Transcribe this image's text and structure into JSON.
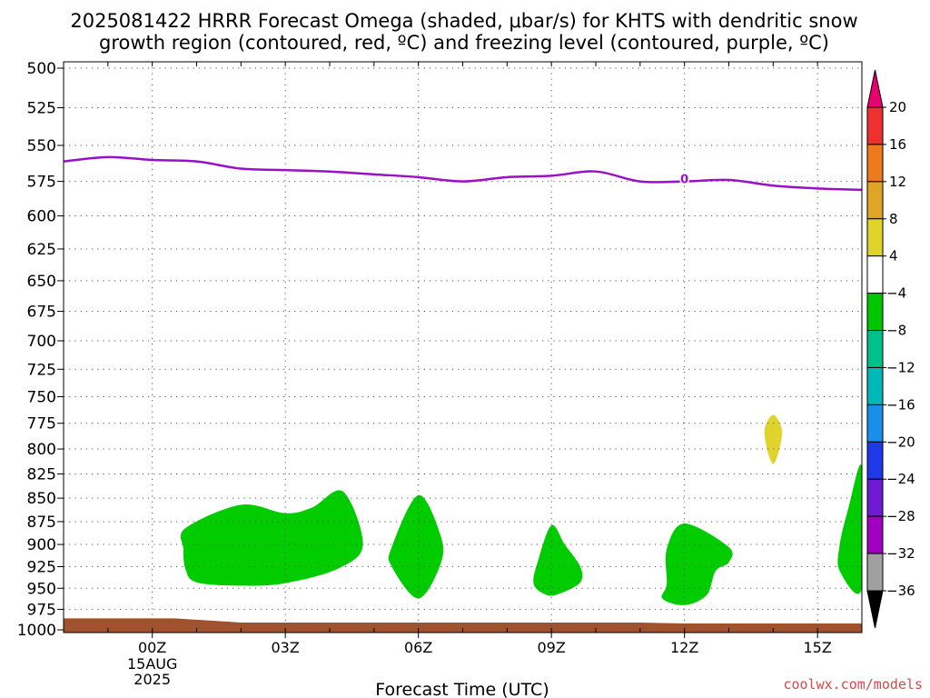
{
  "title": {
    "line1": "2025081422 HRRR Forecast Omega (shaded, μbar/s) for KHTS with dendritic snow",
    "line2": "growth region (contoured, red, ºC) and freezing level (contoured, purple, ºC)"
  },
  "credit": "coolwx.com/models",
  "chart_data": {
    "type": "heatmap",
    "xlabel": "Forecast Time (UTC)",
    "x_ticks": [
      {
        "hour": 0,
        "label": "00Z",
        "sub": [
          "15AUG",
          "2025"
        ]
      },
      {
        "hour": 3,
        "label": "03Z"
      },
      {
        "hour": 6,
        "label": "06Z"
      },
      {
        "hour": 9,
        "label": "09Z"
      },
      {
        "hour": 12,
        "label": "12Z"
      },
      {
        "hour": 15,
        "label": "15Z"
      }
    ],
    "xlim": [
      -2,
      16
    ],
    "y_ticks": [
      500,
      525,
      550,
      575,
      600,
      625,
      650,
      675,
      700,
      725,
      750,
      775,
      800,
      825,
      850,
      875,
      900,
      925,
      950,
      975,
      1000
    ],
    "ylim": [
      500,
      1000
    ],
    "y_scale": "log-pressure (inverted)",
    "grid": true,
    "freezing_level": {
      "color": "#9a10c8",
      "label": "0",
      "label_at": {
        "hour": 12,
        "pressure": 573
      },
      "points": [
        [
          -2,
          561
        ],
        [
          -1,
          558
        ],
        [
          0,
          560
        ],
        [
          1,
          561
        ],
        [
          2,
          566
        ],
        [
          3,
          567
        ],
        [
          4,
          568
        ],
        [
          5,
          570
        ],
        [
          6,
          572
        ],
        [
          7,
          575
        ],
        [
          8,
          572
        ],
        [
          9,
          571
        ],
        [
          10,
          568
        ],
        [
          11,
          575
        ],
        [
          12,
          575
        ],
        [
          13,
          574
        ],
        [
          14,
          578
        ],
        [
          15,
          580
        ],
        [
          16,
          581
        ]
      ]
    },
    "omega_regions": [
      {
        "level": "-8 to -4",
        "color": "#00cc00",
        "points": [
          [
            0.75,
            882
          ],
          [
            2,
            857
          ],
          [
            3,
            866
          ],
          [
            3.6,
            860
          ],
          [
            4.3,
            843
          ],
          [
            4.75,
            900
          ],
          [
            4.2,
            927
          ],
          [
            3,
            944
          ],
          [
            2,
            947
          ],
          [
            1,
            943
          ],
          [
            0.75,
            928
          ],
          [
            0.7,
            905
          ]
        ]
      },
      {
        "level": "-8 to -4",
        "color": "#00cc00",
        "points": [
          [
            6,
            847
          ],
          [
            6.5,
            890
          ],
          [
            6.5,
            922
          ],
          [
            6,
            962
          ],
          [
            5.4,
            925
          ],
          [
            5.4,
            903
          ]
        ]
      },
      {
        "level": "-8 to -4",
        "color": "#00cc00",
        "points": [
          [
            9,
            879
          ],
          [
            9.3,
            900
          ],
          [
            9.65,
            925
          ],
          [
            9.65,
            943
          ],
          [
            9.2,
            956
          ],
          [
            8.9,
            958
          ],
          [
            8.6,
            945
          ],
          [
            8.7,
            918
          ]
        ]
      },
      {
        "level": "-8 to -4",
        "color": "#00cc00",
        "points": [
          [
            12,
            877
          ],
          [
            13,
            903
          ],
          [
            13,
            920
          ],
          [
            12.7,
            930
          ],
          [
            12.5,
            958
          ],
          [
            12,
            970
          ],
          [
            11.5,
            962
          ],
          [
            11.6,
            945
          ],
          [
            11.6,
            905
          ]
        ]
      },
      {
        "level": "-8 to -4",
        "color": "#00cc00",
        "points": [
          [
            16,
            818
          ],
          [
            16,
            950
          ],
          [
            15.5,
            930
          ],
          [
            15.5,
            900
          ],
          [
            15.7,
            860
          ]
        ]
      },
      {
        "level": "4 to 8",
        "color": "#e0d42c",
        "points": [
          [
            14,
            767
          ],
          [
            14.2,
            784
          ],
          [
            14,
            815
          ],
          [
            13.8,
            784
          ]
        ]
      }
    ],
    "ground": {
      "color": "#a0522d",
      "top_pressure_left": 986,
      "top_pressure_right": 991
    },
    "colorbar": {
      "levels": [
        20,
        16,
        12,
        8,
        4,
        -4,
        -8,
        -12,
        -16,
        -20,
        -24,
        -28,
        -32,
        -36
      ],
      "colors": [
        "#e8006e",
        "#ee3030",
        "#ee7a1e",
        "#e0a427",
        "#e0d42c",
        "#ffffff",
        "#00c600",
        "#00c08a",
        "#00b8b8",
        "#1a8ee8",
        "#1e3ae8",
        "#6e1ad0",
        "#a000c0",
        "#a0a0a0",
        "#000000"
      ]
    }
  }
}
